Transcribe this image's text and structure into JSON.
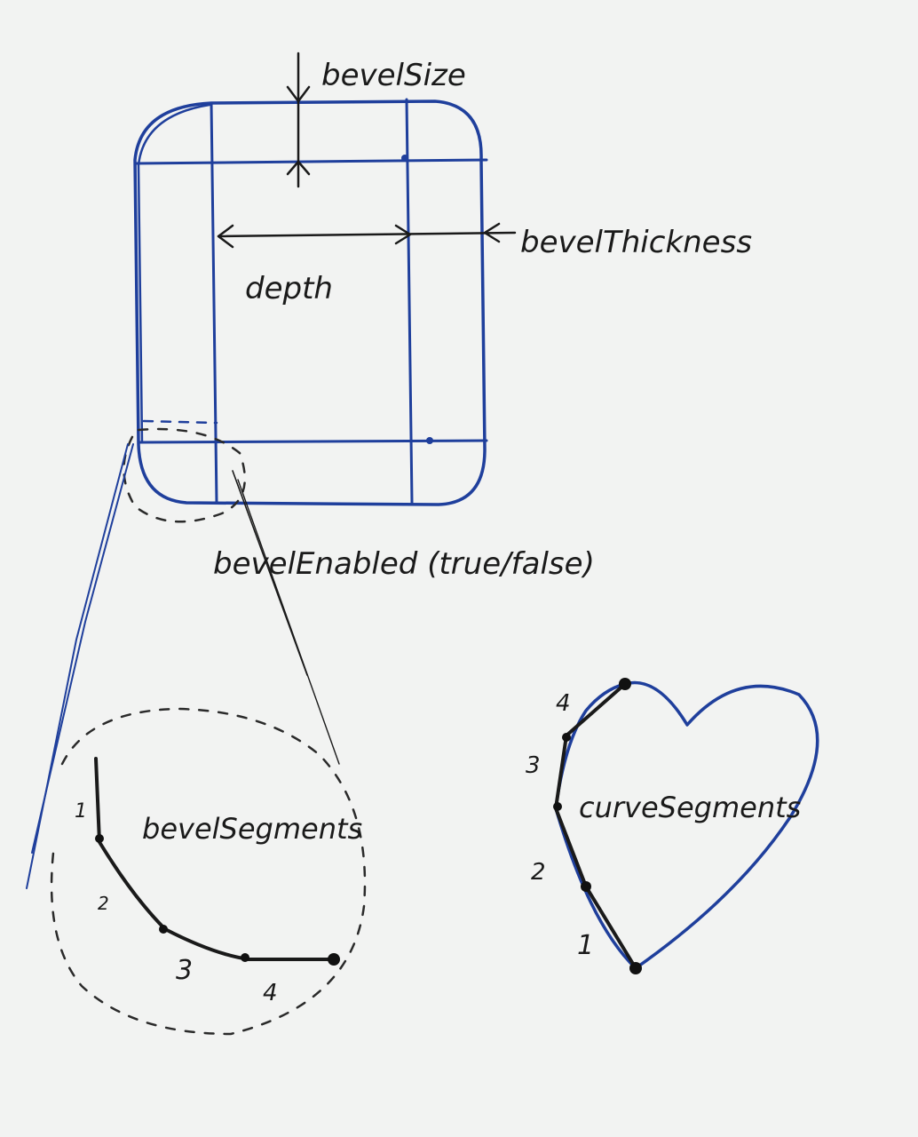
{
  "labels": {
    "bevel_size": "bevelSize",
    "bevel_thickness": "bevelThickness",
    "depth": "depth",
    "bevel_enabled": "bevelEnabled (true/false)",
    "bevel_segments": "bevelSegments",
    "curve_segments": "curveSegments"
  },
  "bevel_segment_numbers": [
    "1",
    "2",
    "3",
    "4"
  ],
  "curve_segment_numbers": [
    "1",
    "2",
    "3",
    "4"
  ],
  "colors": {
    "paper": "#f2f3f2",
    "pen_blue": "#1f3f9c",
    "pen_black": "#1a1a1a"
  }
}
